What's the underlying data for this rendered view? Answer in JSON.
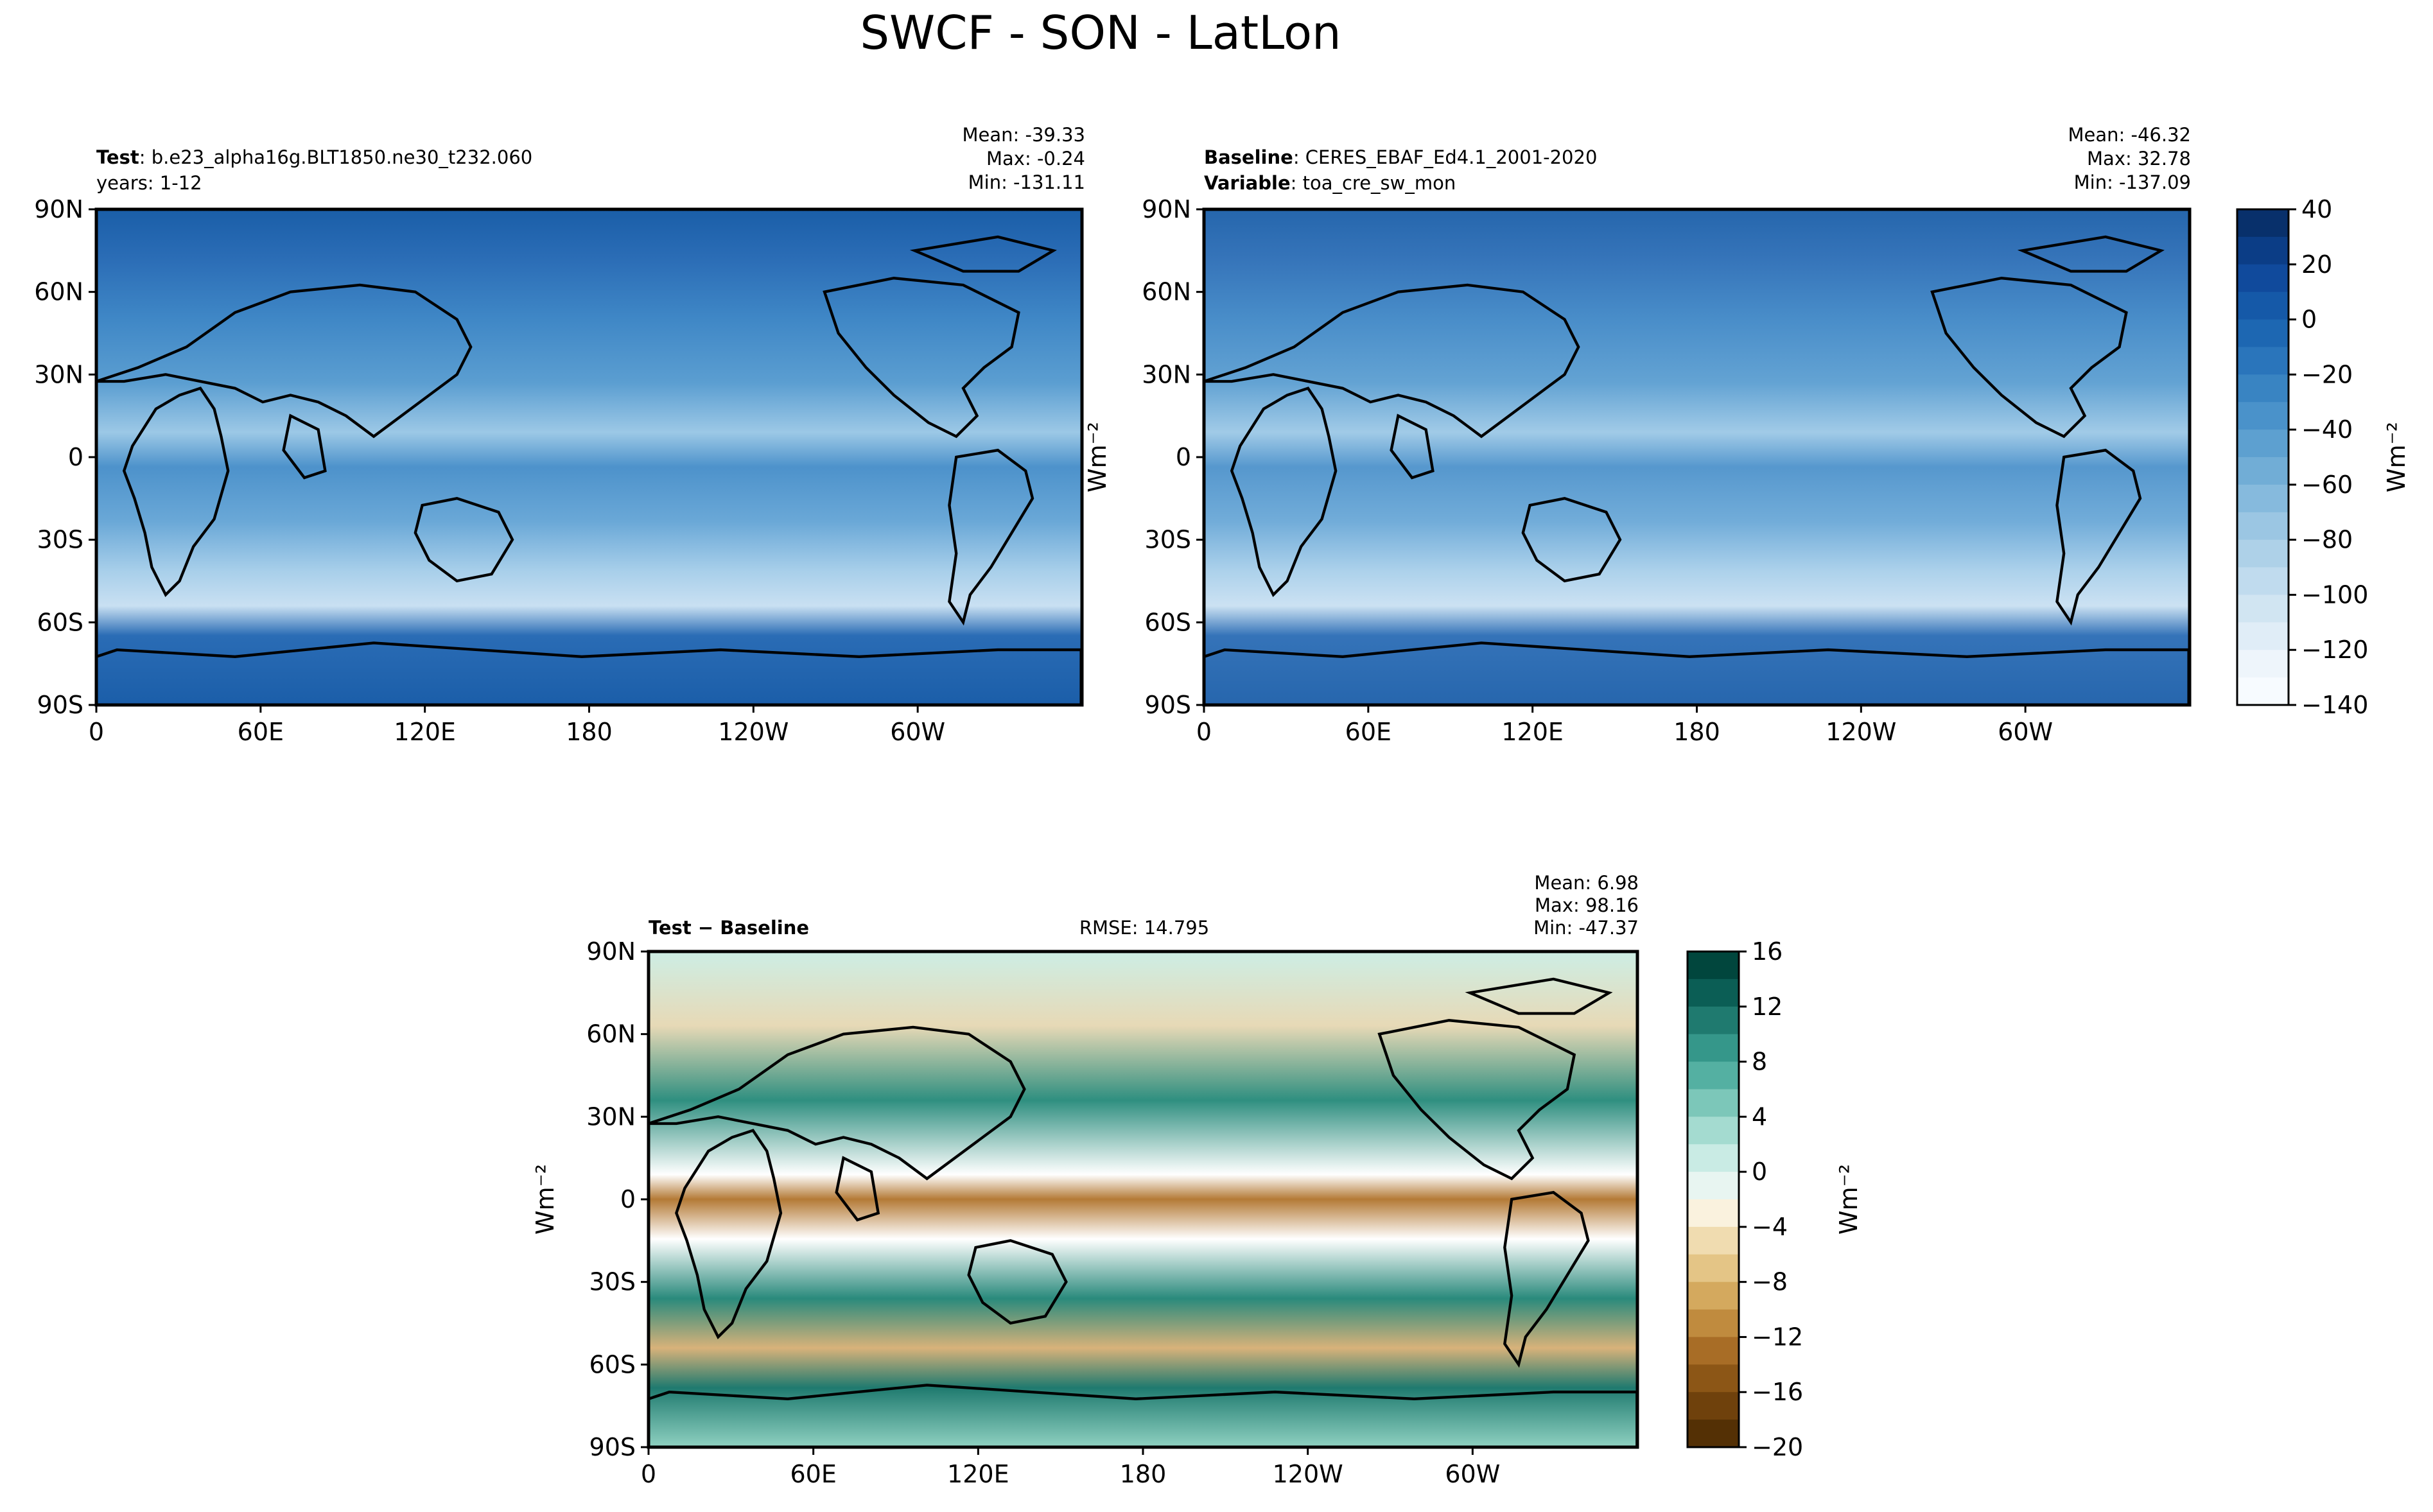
{
  "figure": {
    "title": "SWCF - SON - LatLon",
    "lat_ticks": [
      "90N",
      "60N",
      "30N",
      "0",
      "30S",
      "60S",
      "90S"
    ],
    "lon_ticks": [
      "0",
      "60E",
      "120E",
      "180",
      "120W",
      "60W"
    ]
  },
  "panels": [
    {
      "id": "test",
      "line1_bold": "Test",
      "line1_text": ": b.e23_alpha16g.BLT1850.ne30_t232.060",
      "line2_bold": "",
      "line2_text": "years: 1-12",
      "stat_mean": "Mean: -39.33",
      "stat_max": "Max: -0.24",
      "stat_min": "Min: -131.11"
    },
    {
      "id": "baseline",
      "line1_bold": "Baseline",
      "line1_text": ": CERES_EBAF_Ed4.1_2001-2020",
      "line2_bold": "Variable",
      "line2_text": ": toa_cre_sw_mon",
      "stat_mean": "Mean: -46.32",
      "stat_max": "Max: 32.78",
      "stat_min": "Min: -137.09"
    },
    {
      "id": "diff",
      "line1_bold": "Test − Baseline",
      "rmse": "RMSE: 14.795",
      "stat_mean": "Mean:  6.98",
      "stat_max": "Max: 98.16",
      "stat_min": "Min: -47.37"
    }
  ],
  "colorbars": {
    "top": {
      "label": "Wm⁻²",
      "ticks": [
        "40",
        "20",
        "0",
        "−20",
        "−40",
        "−60",
        "−80",
        "−100",
        "−120",
        "−140"
      ],
      "colors": [
        "#08306b",
        "#0b3d86",
        "#104a9c",
        "#1559a8",
        "#1d67b2",
        "#2a75bb",
        "#3984c2",
        "#4a92ca",
        "#5da0d0",
        "#71add6",
        "#86badd",
        "#9bc6e3",
        "#aed1e8",
        "#c0dbee",
        "#d1e5f2",
        "#e0edf7",
        "#eef5fb",
        "#f7fbff"
      ]
    },
    "bottom": {
      "label": "Wm⁻²",
      "ticks": [
        "16",
        "12",
        "8",
        "4",
        "0",
        "−4",
        "−8",
        "−12",
        "−16",
        "−20"
      ],
      "colors": [
        "#01463d",
        "#0b5e55",
        "#1f7a6f",
        "#35978a",
        "#54b0a2",
        "#7cc7b9",
        "#a4dbd0",
        "#c9ebe4",
        "#e8f5f1",
        "#faf2de",
        "#f0dcb0",
        "#e4c586",
        "#d4a95e",
        "#c08b3e",
        "#a86d26",
        "#8c5616",
        "#6f410c",
        "#543005"
      ]
    }
  },
  "chart_data": [
    {
      "type": "heatmap",
      "title": "Test: b.e23_alpha16g.BLT1850.ne30_t232.060",
      "subtitle": "years: 1-12",
      "variable": "SWCF",
      "season": "SON",
      "stats": {
        "mean": -39.33,
        "max": -0.24,
        "min": -131.11
      },
      "x_ticks": [
        "0",
        "60E",
        "120E",
        "180",
        "120W",
        "60W"
      ],
      "y_ticks": [
        "90N",
        "60N",
        "30N",
        "0",
        "30S",
        "60S",
        "90S"
      ],
      "xlim": [
        0,
        360
      ],
      "ylim": [
        -90,
        90
      ],
      "colorbar": {
        "label": "Wm⁻²",
        "range": [
          -150,
          40
        ]
      }
    },
    {
      "type": "heatmap",
      "title": "Baseline: CERES_EBAF_Ed4.1_2001-2020",
      "subtitle": "Variable: toa_cre_sw_mon",
      "stats": {
        "mean": -46.32,
        "max": 32.78,
        "min": -137.09
      },
      "x_ticks": [
        "0",
        "60E",
        "120E",
        "180",
        "120W",
        "60W"
      ],
      "y_ticks": [
        "90N",
        "60N",
        "30N",
        "0",
        "30S",
        "60S",
        "90S"
      ],
      "xlim": [
        0,
        360
      ],
      "ylim": [
        -90,
        90
      ],
      "colorbar": {
        "label": "Wm⁻²",
        "range": [
          -150,
          40
        ]
      }
    },
    {
      "type": "heatmap",
      "title": "Test − Baseline",
      "rmse": 14.795,
      "stats": {
        "mean": 6.98,
        "max": 98.16,
        "min": -47.37
      },
      "x_ticks": [
        "0",
        "60E",
        "120E",
        "180",
        "120W",
        "60W"
      ],
      "y_ticks": [
        "90N",
        "60N",
        "30N",
        "0",
        "30S",
        "60S",
        "90S"
      ],
      "xlim": [
        0,
        360
      ],
      "ylim": [
        -90,
        90
      ],
      "colorbar": {
        "label": "Wm⁻²",
        "range": [
          -20,
          18
        ]
      }
    }
  ]
}
